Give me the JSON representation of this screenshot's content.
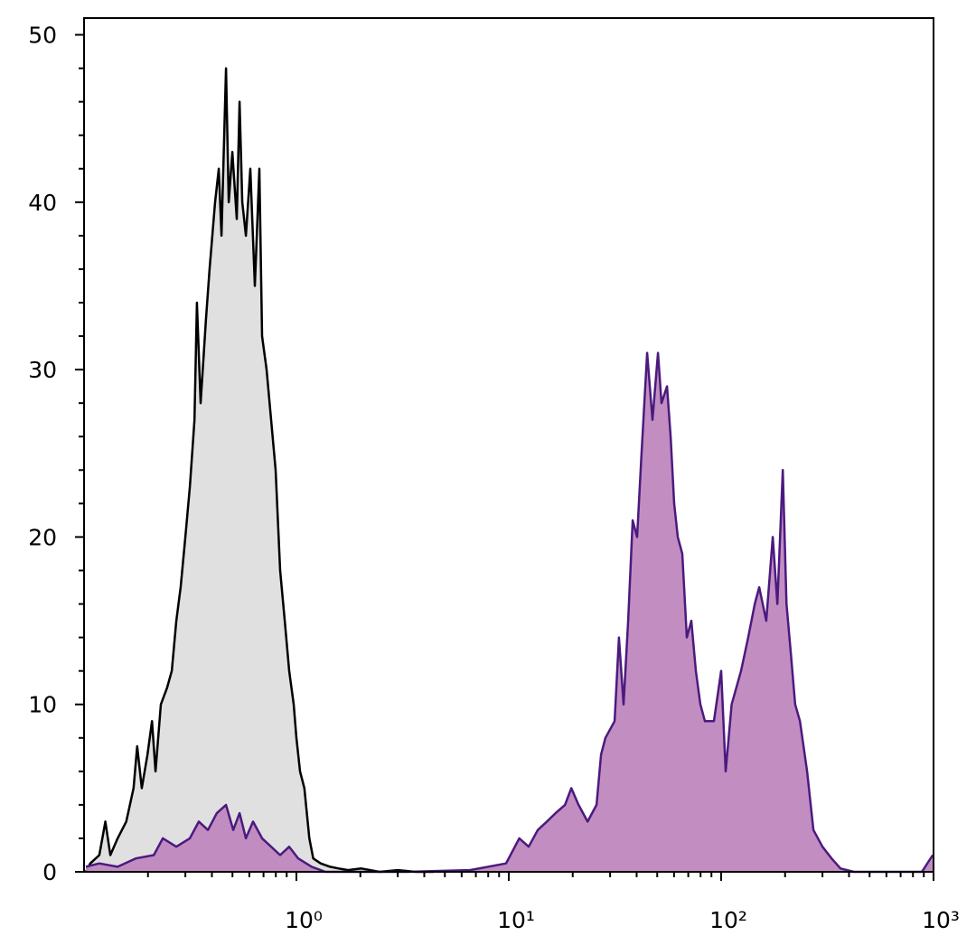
{
  "chart_data": {
    "type": "histogram-overlay",
    "xscale": "log",
    "xlim": [
      0.1,
      1000
    ],
    "ylim": [
      0,
      51
    ],
    "xticks": [
      {
        "value": 1,
        "label": "10⁰"
      },
      {
        "value": 10,
        "label": "10¹"
      },
      {
        "value": 100,
        "label": "10²"
      },
      {
        "value": 1000,
        "label": "10³"
      }
    ],
    "xminorticks": [
      0.2,
      0.3,
      0.4,
      0.5,
      0.6,
      0.7,
      0.8,
      0.9,
      2,
      3,
      4,
      5,
      6,
      7,
      8,
      9,
      20,
      30,
      40,
      50,
      60,
      70,
      80,
      90,
      200,
      300,
      400,
      500,
      600,
      700,
      800,
      900
    ],
    "yticks": [
      0,
      10,
      20,
      30,
      40,
      50
    ],
    "yminorticks": [
      2,
      4,
      6,
      8,
      12,
      14,
      16,
      18,
      22,
      24,
      26,
      28,
      32,
      34,
      36,
      38,
      42,
      44,
      46,
      48
    ],
    "series": [
      {
        "color": "#000000",
        "fill": "#e0e0e0",
        "x": [
          0.102,
          0.107,
          0.118,
          0.126,
          0.133,
          0.144,
          0.158,
          0.171,
          0.178,
          0.187,
          0.199,
          0.209,
          0.217,
          0.23,
          0.246,
          0.259,
          0.272,
          0.285,
          0.3,
          0.315,
          0.331,
          0.34,
          0.354,
          0.375,
          0.39,
          0.414,
          0.431,
          0.444,
          0.466,
          0.48,
          0.499,
          0.524,
          0.54,
          0.556,
          0.578,
          0.607,
          0.637,
          0.669,
          0.689,
          0.724,
          0.76,
          0.798,
          0.838,
          0.881,
          0.925,
          0.971,
          1.0,
          1.04,
          1.09,
          1.15,
          1.2,
          1.3,
          1.44,
          1.58,
          1.75,
          2.02,
          2.46,
          3.0,
          3.65,
          4.43
        ],
        "values": [
          0,
          0.5,
          1,
          3,
          1,
          2,
          3,
          5,
          7.5,
          5,
          7,
          9,
          6,
          10,
          11,
          12,
          15,
          17,
          20,
          23,
          27,
          34,
          28,
          33,
          36,
          40,
          42,
          38,
          48,
          40,
          43,
          39,
          46,
          40,
          38,
          42,
          35,
          42,
          32,
          30,
          27,
          24,
          18,
          15,
          12,
          10,
          8,
          6,
          5,
          2,
          0.8,
          0.5,
          0.3,
          0.2,
          0.1,
          0.2,
          0,
          0.1,
          0,
          0
        ]
      },
      {
        "color": "#4b1a7f",
        "fill": "#bf88bf",
        "x": [
          0.102,
          0.118,
          0.144,
          0.175,
          0.213,
          0.235,
          0.272,
          0.315,
          0.347,
          0.383,
          0.422,
          0.466,
          0.504,
          0.54,
          0.578,
          0.625,
          0.689,
          0.76,
          0.838,
          0.925,
          1.02,
          1.18,
          1.37,
          3.3,
          6.56,
          9.71,
          11.2,
          12.4,
          13.7,
          15.1,
          16.6,
          18.4,
          19.7,
          21.3,
          23.5,
          25.9,
          27.2,
          28.5,
          31.5,
          33.0,
          34.7,
          36.5,
          38.3,
          40.2,
          42.2,
          44.8,
          47.5,
          50.4,
          52.4,
          55.6,
          57.8,
          60.1,
          62.5,
          65.6,
          68.9,
          72.4,
          76.0,
          79.8,
          83.8,
          92.5,
          100,
          105,
          112,
          124,
          134,
          144,
          151,
          163,
          175,
          184,
          195,
          203,
          213,
          223,
          235,
          254,
          272,
          300,
          331,
          365,
          422,
          881,
          991
        ],
        "values": [
          0.3,
          0.5,
          0.3,
          0.8,
          1,
          2,
          1.5,
          2,
          3,
          2.5,
          3.5,
          4,
          2.5,
          3.5,
          2,
          3,
          2,
          1.5,
          1,
          1.5,
          0.8,
          0.3,
          0,
          0,
          0.1,
          0.5,
          2,
          1.5,
          2.5,
          3,
          3.5,
          4,
          5,
          4,
          3,
          4,
          7,
          8,
          9,
          14,
          10,
          15,
          21,
          20,
          25,
          31,
          27,
          31,
          28,
          29,
          26,
          22,
          20,
          19,
          14,
          15,
          12,
          10,
          9,
          9,
          12,
          6,
          10,
          12,
          14,
          16,
          17,
          15,
          20,
          16,
          24,
          16,
          13,
          10,
          9,
          6,
          2.5,
          1.5,
          0.8,
          0.2,
          0,
          0,
          1
        ]
      }
    ]
  }
}
